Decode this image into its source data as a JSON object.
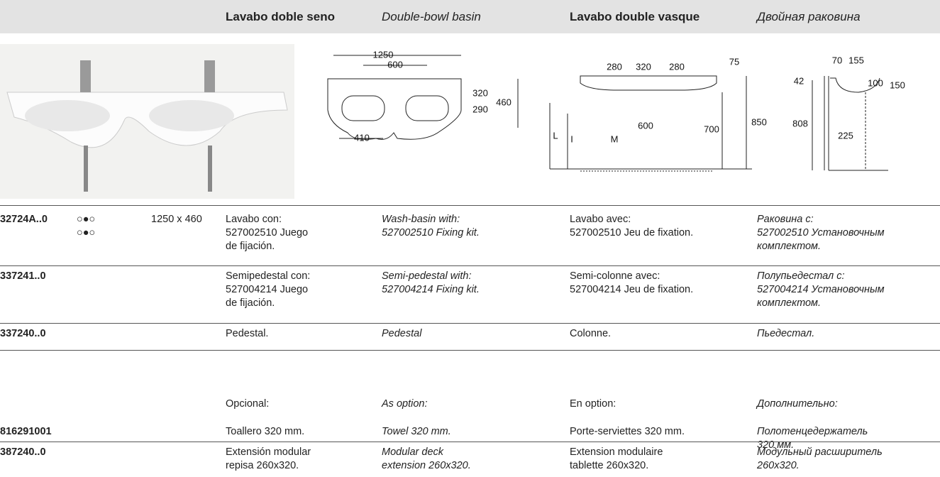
{
  "header": {
    "columns": [
      "Lavabo doble seno",
      "Double-bowl basin",
      "Lavabo double vasque",
      "Двойная раковина"
    ]
  },
  "drawings": {
    "front": [
      "1250",
      "600",
      "320",
      "290",
      "460",
      "410"
    ],
    "side": [
      "280",
      "320",
      "280",
      "75",
      "600",
      "M",
      "L",
      "I",
      "700",
      "850"
    ],
    "section": [
      "70",
      "155",
      "42",
      "100",
      "150",
      "808",
      "225"
    ]
  },
  "rows": [
    {
      "code": "32724A..0",
      "symbols": [
        "○●○",
        "○●○"
      ],
      "size": "1250 x 460",
      "es": [
        "Lavabo con:",
        "527002510 Juego",
        "de fijación."
      ],
      "en": [
        "Wash-basin with:",
        "527002510 Fixing kit."
      ],
      "fr": [
        "Lavabo avec:",
        "527002510 Jeu de fixation."
      ],
      "ru": [
        "Раковина с:",
        "527002510 Установочным",
        "комплектом."
      ]
    },
    {
      "code": "337241..0",
      "es": [
        "Semipedestal con:",
        "527004214 Juego",
        "de fijación."
      ],
      "en": [
        "Semi-pedestal with:",
        "527004214 Fixing kit."
      ],
      "fr": [
        "Semi-colonne avec:",
        "527004214 Jeu de fixation."
      ],
      "ru": [
        "Полупьедестал с:",
        "527004214 Установочным",
        "комплектом."
      ]
    },
    {
      "code": "337240..0",
      "es": [
        "Pedestal."
      ],
      "en": [
        "Pedestal"
      ],
      "fr": [
        "Colonne."
      ],
      "ru": [
        "Пьедестал."
      ]
    },
    {
      "es": [
        "Opcional:"
      ],
      "en": [
        "As option:"
      ],
      "fr": [
        "En option:"
      ],
      "ru": [
        "Дополнительно:"
      ]
    },
    {
      "code": "816291001",
      "es": [
        "Toallero 320 mm."
      ],
      "en": [
        "Towel 320 mm."
      ],
      "fr": [
        "Porte-serviettes 320 mm."
      ],
      "ru": [
        "Полотенцедержатель",
        "320 мм."
      ]
    },
    {
      "code": "387240..0",
      "es": [
        "Extensión modular",
        "repisa 260x320."
      ],
      "en": [
        "Modular deck",
        "extension 260x320."
      ],
      "fr": [
        "Extension modulaire",
        "tablette 260x320."
      ],
      "ru": [
        "Модульный расширитель",
        "260x320."
      ]
    }
  ]
}
